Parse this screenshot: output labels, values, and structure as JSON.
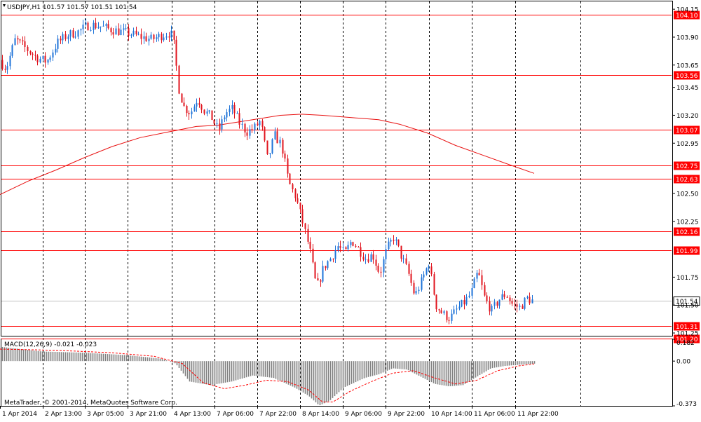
{
  "window": {
    "header": "USDJPY,H1  101.57 101.57 101.51 101.54",
    "copyright": "MetaTrader, © 2001-2014, MetaQuotes Software Corp."
  },
  "colors": {
    "background": "#ffffff",
    "bull": "#1e73d8",
    "bear": "#e0141e",
    "level": "#ff0000",
    "ma": "#e81010",
    "grid": "#000000",
    "histogram": "#808080",
    "signal": "#ff0000"
  },
  "chart_data": [
    {
      "type": "candlestick",
      "title": "USDJPY,H1",
      "ohlc_last": {
        "open": 101.57,
        "high": 101.57,
        "low": 101.51,
        "close": 101.54
      },
      "ylim": [
        101.225,
        104.22
      ],
      "y_ticks": [
        104.15,
        103.9,
        103.65,
        103.45,
        103.2,
        102.95,
        102.5,
        102.25,
        101.75,
        101.5,
        101.25
      ],
      "x_ticks": [
        "1 Apr 2014",
        "2 Apr 13:00",
        "3 Apr 05:00",
        "3 Apr 21:00",
        "4 Apr 13:00",
        "7 Apr 06:00",
        "7 Apr 22:00",
        "8 Apr 14:00",
        "9 Apr 06:00",
        "9 Apr 22:00",
        "10 Apr 14:00",
        "11 Apr 06:00",
        "11 Apr 22:00"
      ],
      "levels": [
        "104.10",
        "103.56",
        "103.07",
        "102.75",
        "102.63",
        "102.16",
        "101.99",
        "101.31",
        "101.20"
      ],
      "current_price": "101.54",
      "moving_average": [
        [
          0,
          102.49
        ],
        [
          40,
          102.61
        ],
        [
          80,
          102.71
        ],
        [
          120,
          102.82
        ],
        [
          160,
          102.92
        ],
        [
          200,
          103.0
        ],
        [
          240,
          103.05
        ],
        [
          280,
          103.1
        ],
        [
          310,
          103.11
        ],
        [
          340,
          103.14
        ],
        [
          370,
          103.17
        ],
        [
          400,
          103.2
        ],
        [
          430,
          103.21
        ],
        [
          460,
          103.2
        ],
        [
          500,
          103.18
        ],
        [
          540,
          103.16
        ],
        [
          570,
          103.12
        ],
        [
          610,
          103.04
        ],
        [
          650,
          102.93
        ],
        [
          690,
          102.84
        ],
        [
          730,
          102.75
        ],
        [
          762,
          102.68
        ]
      ],
      "path": [
        [
          0,
          103.71
        ],
        [
          12,
          103.62
        ],
        [
          25,
          103.88
        ],
        [
          40,
          103.8
        ],
        [
          55,
          103.72
        ],
        [
          70,
          103.68
        ],
        [
          85,
          103.85
        ],
        [
          100,
          103.92
        ],
        [
          115,
          103.95
        ],
        [
          130,
          104.01
        ],
        [
          145,
          104.0
        ],
        [
          160,
          103.97
        ],
        [
          175,
          103.95
        ],
        [
          190,
          103.93
        ],
        [
          205,
          103.9
        ],
        [
          220,
          103.88
        ],
        [
          235,
          103.92
        ],
        [
          247,
          103.94
        ],
        [
          252,
          103.82
        ],
        [
          258,
          103.45
        ],
        [
          265,
          103.28
        ],
        [
          275,
          103.22
        ],
        [
          285,
          103.35
        ],
        [
          295,
          103.24
        ],
        [
          305,
          103.18
        ],
        [
          315,
          103.06
        ],
        [
          325,
          103.22
        ],
        [
          335,
          103.26
        ],
        [
          345,
          103.13
        ],
        [
          355,
          103.05
        ],
        [
          365,
          103.08
        ],
        [
          375,
          103.15
        ],
        [
          385,
          102.8
        ],
        [
          395,
          103.02
        ],
        [
          405,
          102.93
        ],
        [
          415,
          102.6
        ],
        [
          425,
          102.47
        ],
        [
          435,
          102.24
        ],
        [
          445,
          102.0
        ],
        [
          455,
          101.65
        ],
        [
          465,
          101.84
        ],
        [
          475,
          101.92
        ],
        [
          485,
          102.03
        ],
        [
          495,
          101.96
        ],
        [
          505,
          102.08
        ],
        [
          515,
          102.0
        ],
        [
          525,
          101.92
        ],
        [
          535,
          101.95
        ],
        [
          545,
          101.78
        ],
        [
          555,
          102.0
        ],
        [
          565,
          102.11
        ],
        [
          575,
          101.95
        ],
        [
          585,
          101.8
        ],
        [
          595,
          101.58
        ],
        [
          605,
          101.72
        ],
        [
          615,
          101.88
        ],
        [
          625,
          101.5
        ],
        [
          635,
          101.42
        ],
        [
          645,
          101.38
        ],
        [
          655,
          101.46
        ],
        [
          665,
          101.52
        ],
        [
          675,
          101.6
        ],
        [
          685,
          101.8
        ],
        [
          695,
          101.55
        ],
        [
          705,
          101.45
        ],
        [
          715,
          101.55
        ],
        [
          725,
          101.6
        ],
        [
          735,
          101.5
        ],
        [
          745,
          101.48
        ],
        [
          755,
          101.56
        ],
        [
          762,
          101.54
        ]
      ]
    },
    {
      "type": "histogram",
      "title": "MACD(12,26,9) -0.021 -0.023",
      "ylim": [
        -0.373,
        0.182
      ],
      "y_ticks": [
        "0.182",
        "0.00",
        "-0.373"
      ],
      "histogram": [
        [
          0,
          0.12
        ],
        [
          60,
          0.08
        ],
        [
          120,
          0.07
        ],
        [
          180,
          0.05
        ],
        [
          230,
          0.02
        ],
        [
          250,
          -0.02
        ],
        [
          270,
          -0.17
        ],
        [
          300,
          -0.2
        ],
        [
          330,
          -0.17
        ],
        [
          360,
          -0.12
        ],
        [
          390,
          -0.14
        ],
        [
          420,
          -0.22
        ],
        [
          440,
          -0.29
        ],
        [
          455,
          -0.37
        ],
        [
          470,
          -0.33
        ],
        [
          490,
          -0.22
        ],
        [
          520,
          -0.14
        ],
        [
          540,
          -0.11
        ],
        [
          560,
          -0.06
        ],
        [
          580,
          -0.07
        ],
        [
          600,
          -0.13
        ],
        [
          620,
          -0.19
        ],
        [
          640,
          -0.21
        ],
        [
          660,
          -0.2
        ],
        [
          680,
          -0.13
        ],
        [
          700,
          -0.06
        ],
        [
          720,
          -0.04
        ],
        [
          740,
          -0.03
        ],
        [
          762,
          -0.021
        ]
      ],
      "signal": [
        [
          0,
          0.1
        ],
        [
          80,
          0.09
        ],
        [
          160,
          0.07
        ],
        [
          220,
          0.04
        ],
        [
          260,
          -0.02
        ],
        [
          290,
          -0.18
        ],
        [
          320,
          -0.23
        ],
        [
          350,
          -0.2
        ],
        [
          380,
          -0.16
        ],
        [
          410,
          -0.17
        ],
        [
          440,
          -0.24
        ],
        [
          460,
          -0.34
        ],
        [
          475,
          -0.34
        ],
        [
          500,
          -0.25
        ],
        [
          530,
          -0.17
        ],
        [
          560,
          -0.1
        ],
        [
          590,
          -0.08
        ],
        [
          620,
          -0.14
        ],
        [
          650,
          -0.19
        ],
        [
          680,
          -0.16
        ],
        [
          710,
          -0.08
        ],
        [
          740,
          -0.04
        ],
        [
          762,
          -0.023
        ]
      ]
    }
  ]
}
